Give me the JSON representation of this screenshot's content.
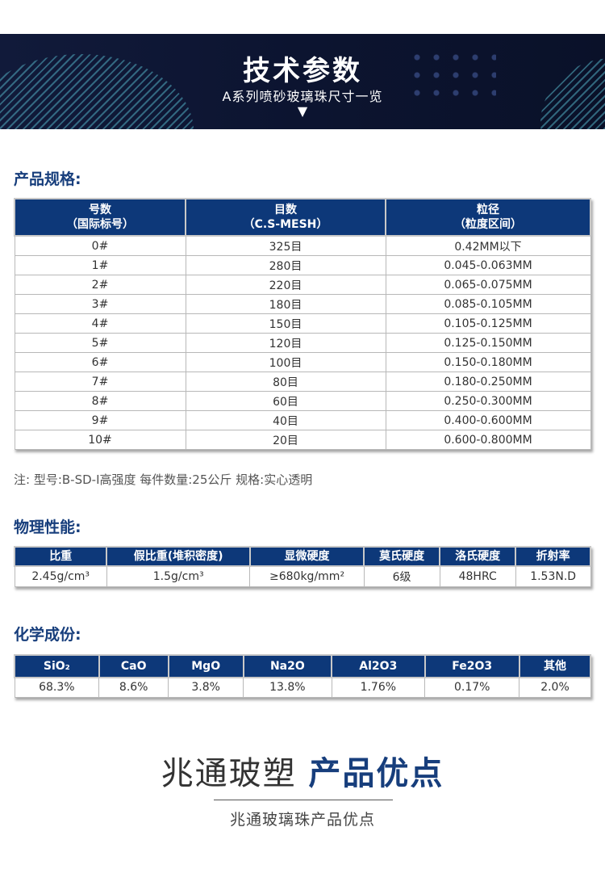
{
  "banner": {
    "title": "技术参数",
    "subtitle": "A系列喷砂玻璃珠尺寸一览",
    "arrow": "▼"
  },
  "spec": {
    "title": "产品规格:",
    "headers": [
      [
        "号数",
        "（国际标号）"
      ],
      [
        "目数",
        "（C.S-MESH）"
      ],
      [
        "粒径",
        "（粒度区间）"
      ]
    ],
    "rows": [
      [
        "0#",
        "325目",
        "0.42MM以下"
      ],
      [
        "1#",
        "280目",
        "0.045-0.063MM"
      ],
      [
        "2#",
        "220目",
        "0.065-0.075MM"
      ],
      [
        "3#",
        "180目",
        "0.085-0.105MM"
      ],
      [
        "4#",
        "150目",
        "0.105-0.125MM"
      ],
      [
        "5#",
        "120目",
        "0.125-0.150MM"
      ],
      [
        "6#",
        "100目",
        "0.150-0.180MM"
      ],
      [
        "7#",
        "80目",
        "0.180-0.250MM"
      ],
      [
        "8#",
        "60目",
        "0.250-0.300MM"
      ],
      [
        "9#",
        "40目",
        "0.400-0.600MM"
      ],
      [
        "10#",
        "20目",
        "0.600-0.800MM"
      ]
    ],
    "note": "注:  型号:B-SD-I高强度   每件数量:25公斤   规格:实心透明"
  },
  "physical": {
    "title": "物理性能:",
    "headers": [
      "比重",
      "假比重(堆积密度)",
      "显微硬度",
      "莫氏硬度",
      "洛氏硬度",
      "折射率"
    ],
    "values": [
      "2.45g/cm³",
      "1.5g/cm³",
      "≥680kg/mm²",
      "6级",
      "48HRC",
      "1.53N.D"
    ]
  },
  "chemical": {
    "title": "化学成份:",
    "headers": [
      "SiO₂",
      "CaO",
      "MgO",
      "Na2O",
      "Al2O3",
      "Fe2O3",
      "其他"
    ],
    "values": [
      "68.3%",
      "8.6%",
      "3.8%",
      "13.8%",
      "1.76%",
      "0.17%",
      "2.0%"
    ]
  },
  "advantages": {
    "brand": "兆通玻塑",
    "title": "产品优点",
    "subtitle": "兆通玻璃珠产品优点"
  }
}
